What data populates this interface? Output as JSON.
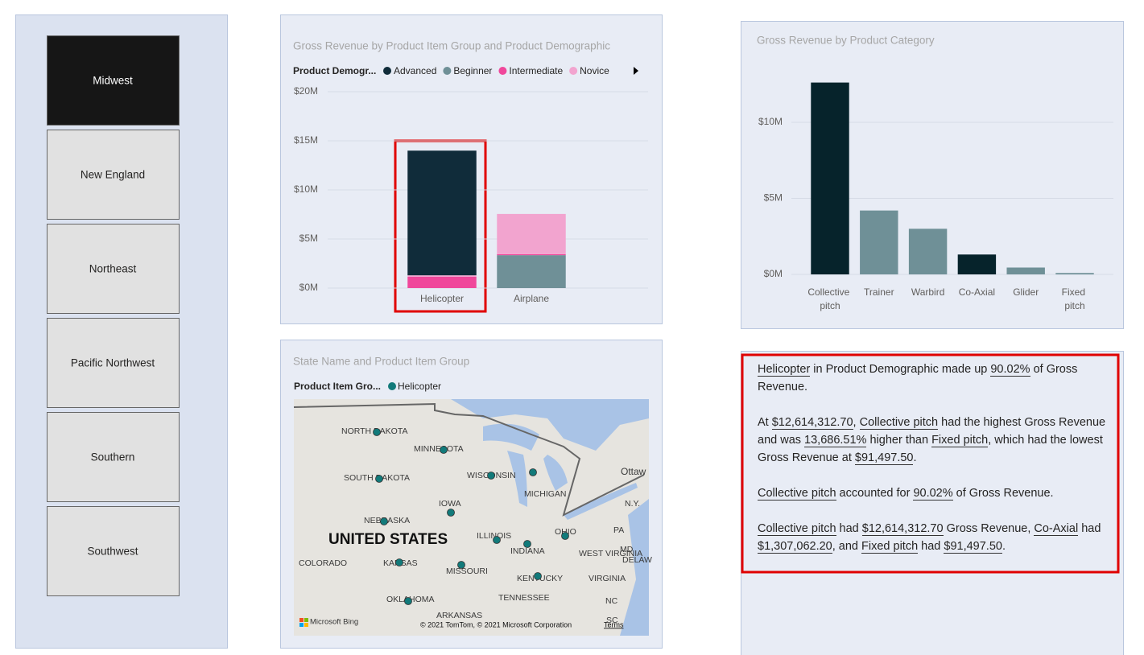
{
  "slicer": {
    "items": [
      "Midwest",
      "New England",
      "Northeast",
      "Pacific Northwest",
      "Southern",
      "Southwest"
    ],
    "selected_index": 0
  },
  "chart_data": [
    {
      "type": "stacked-bar",
      "title": "Gross Revenue by Product Item Group and Product Demographic",
      "legend_title": "Product Demogr...",
      "categories": [
        "Helicopter",
        "Airplane"
      ],
      "series": [
        {
          "name": "Advanced",
          "color": "#102c3a",
          "values": [
            12700000,
            0
          ]
        },
        {
          "name": "Beginner",
          "color": "#6f9097",
          "values": [
            0,
            3350000
          ]
        },
        {
          "name": "Intermediate",
          "color": "#f0479b",
          "values": [
            1150000,
            100000
          ]
        },
        {
          "name": "Novice",
          "color": "#f2a4cf",
          "values": [
            150000,
            4100000
          ]
        }
      ],
      "stack_order": [
        1,
        2,
        3,
        0
      ],
      "ylim": [
        0,
        20000000
      ],
      "yticks": [
        {
          "value": 0,
          "label": "$0M"
        },
        {
          "value": 5000000,
          "label": "$5M"
        },
        {
          "value": 10000000,
          "label": "$10M"
        },
        {
          "value": 15000000,
          "label": "$15M"
        },
        {
          "value": 20000000,
          "label": "$20M"
        }
      ],
      "grid": true
    },
    {
      "type": "bar",
      "title": "Gross Revenue by Product Category",
      "categories": [
        "Collective pitch",
        "Trainer",
        "Warbird",
        "Co-Axial",
        "Glider",
        "Fixed pitch"
      ],
      "values": [
        12614312.7,
        4200000,
        3000000,
        1307062.2,
        450000,
        91497.5
      ],
      "colors": [
        "#06232b",
        "#6f9097",
        "#6f9097",
        "#06232b",
        "#6f9097",
        "#6f9097"
      ],
      "ylim": [
        0,
        13000000
      ],
      "yticks": [
        {
          "value": 0,
          "label": "$0M"
        },
        {
          "value": 5000000,
          "label": "$5M"
        },
        {
          "value": 10000000,
          "label": "$10M"
        }
      ],
      "grid": true
    }
  ],
  "map": {
    "title": "State Name and Product Item Group",
    "legend_title": "Product Item Gro...",
    "legend_item": "Helicopter",
    "labels": [
      "NORTH DAKOTA",
      "MINNESOTA",
      "SOUTH DAKOTA",
      "WISCONSIN",
      "MICHIGAN",
      "IOWA",
      "NEBRASKA",
      "UNITED STATES",
      "ILLINOIS",
      "OHIO",
      "PA",
      "N.Y.",
      "INDIANA",
      "WEST VIRGINIA",
      "MD",
      "DELAW",
      "COLORADO",
      "KANSAS",
      "MISSOURI",
      "KENTUCKY",
      "VIRGINIA",
      "OKLAHOMA",
      "TENNESSEE",
      "NC",
      "ARKANSAS",
      "SC",
      "Ottaw"
    ],
    "logo": "Microsoft Bing",
    "attribution": "© 2021 TomTom, © 2021 Microsoft Corporation",
    "terms": "Terms"
  },
  "narrative": {
    "paragraphs": [
      [
        {
          "text": "Helicopter",
          "underline": true
        },
        {
          "text": " in Product Demographic  made up ",
          "underline": false
        },
        {
          "text": "90.02%",
          "underline": true
        },
        {
          "text": " of Gross Revenue.",
          "underline": false
        }
      ],
      [
        {
          "text": "At ",
          "underline": false
        },
        {
          "text": "$12,614,312.70",
          "underline": true
        },
        {
          "text": ", ",
          "underline": false
        },
        {
          "text": "Collective pitch",
          "underline": true
        },
        {
          "text": " had the highest Gross Revenue and was ",
          "underline": false
        },
        {
          "text": "13,686.51%",
          "underline": true
        },
        {
          "text": " higher than ",
          "underline": false
        },
        {
          "text": "Fixed pitch",
          "underline": true
        },
        {
          "text": ", which had the lowest Gross Revenue at ",
          "underline": false
        },
        {
          "text": "$91,497.50",
          "underline": true
        },
        {
          "text": ".",
          "underline": false
        }
      ],
      [
        {
          "text": "Collective pitch",
          "underline": true
        },
        {
          "text": " accounted for ",
          "underline": false
        },
        {
          "text": "90.02%",
          "underline": true
        },
        {
          "text": " of Gross Revenue.",
          "underline": false
        }
      ],
      [
        {
          "text": "Collective pitch",
          "underline": true
        },
        {
          "text": " had ",
          "underline": false
        },
        {
          "text": "$12,614,312.70",
          "underline": true
        },
        {
          "text": " Gross Revenue, ",
          "underline": false
        },
        {
          "text": "Co-Axial",
          "underline": true
        },
        {
          "text": " had ",
          "underline": false
        },
        {
          "text": "$1,307,062.20",
          "underline": true
        },
        {
          "text": ", and ",
          "underline": false
        },
        {
          "text": "Fixed pitch",
          "underline": true
        },
        {
          "text": " had ",
          "underline": false
        },
        {
          "text": "$91,497.50",
          "underline": true
        },
        {
          "text": ".",
          "underline": false
        }
      ]
    ]
  }
}
